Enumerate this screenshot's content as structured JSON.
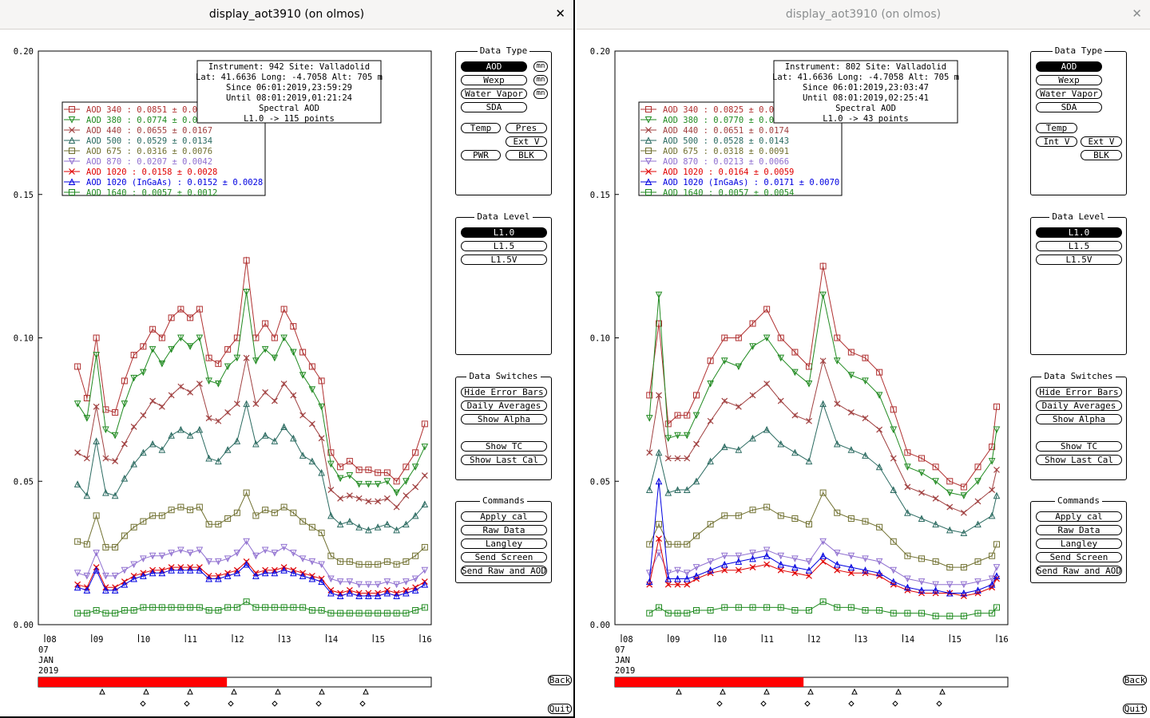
{
  "colors": {
    "accent_red": "#ff0000",
    "active_bg": "#000000"
  },
  "series_styles": [
    {
      "color": "#b03030",
      "marker": "square"
    },
    {
      "color": "#208a20",
      "marker": "tri-down"
    },
    {
      "color": "#a04040",
      "marker": "x"
    },
    {
      "color": "#2a6a60",
      "marker": "tri-up"
    },
    {
      "color": "#707030",
      "marker": "square"
    },
    {
      "color": "#9070d0",
      "marker": "tri-down"
    },
    {
      "color": "#e00000",
      "marker": "x"
    },
    {
      "color": "#0000e0",
      "marker": "tri-up"
    },
    {
      "color": "#1e8a1e",
      "marker": "square"
    }
  ],
  "windows": [
    {
      "title": "display_aot3910 (on olmos)",
      "info": {
        "line1": "Instrument: 942 Site: Valladolid",
        "line2": "Lat: 41.6636 Long: -4.7058 Alt: 705 m",
        "line3": "Since 06:01:2019,23:59:29",
        "line4": "Until 08:01:2019,01:21:24",
        "line5": "Spectral AOD",
        "line6": "L1.0 -> 115 points"
      },
      "legend": [
        "AOD 340  : 0.0851 ± 0.0",
        "AOD 380  : 0.0774 ± 0.0",
        "AOD 440  : 0.0655 ± 0.0167",
        "AOD 500  : 0.0529 ± 0.0134",
        "AOD 675  : 0.0316 ± 0.0076",
        "AOD 870  : 0.0207 ± 0.0042",
        "AOD 1020  : 0.0158 ± 0.0028",
        "AOD 1020 (InGaAs)  : 0.0152 ± 0.0028",
        "AOD 1640  : 0.0057 ± 0.0012"
      ]
    },
    {
      "title": "display_aot3910 (on olmos)",
      "info": {
        "line1": "Instrument: 802 Site: Valladolid",
        "line2": "Lat: 41.6636 Long: -4.7058 Alt: 705 m",
        "line3": "Since 06:01:2019,23:03:47",
        "line4": "Until 08:01:2019,02:25:41",
        "line5": "Spectral AOD",
        "line6": "L1.0 -> 43 points"
      },
      "legend": [
        "AOD 340  : 0.0825 ± 0.0",
        "AOD 380  : 0.0770 ± 0.0",
        "AOD 440  : 0.0651 ± 0.0174",
        "AOD 500  : 0.0528 ± 0.0143",
        "AOD 675  : 0.0318 ± 0.0091",
        "AOD 870  : 0.0213 ± 0.0066",
        "AOD 1020  : 0.0164 ± 0.0059",
        "AOD 1020 (InGaAs)  : 0.0171 ± 0.0070",
        "AOD 1640  : 0.0057 ± 0.0054"
      ]
    }
  ],
  "axis": {
    "y_ticks": [
      "0.20",
      "0.15",
      "0.10",
      "0.05",
      "0.00"
    ],
    "x_ticks": [
      "08",
      "09",
      "10",
      "11",
      "12",
      "13",
      "14",
      "15",
      "16"
    ],
    "day": "07",
    "month": "JAN",
    "year": "2019"
  },
  "panels": {
    "data_type": {
      "title": "Data Type",
      "aod": "AOD",
      "wexp": "Wexp",
      "water_vapor": "Water Vapor",
      "sda": "SDA",
      "temp": "Temp",
      "pres": "Pres",
      "ext_v": "Ext V",
      "pwr": "PWR",
      "blk": "BLK",
      "int_v": "Int V",
      "mn": "mn"
    },
    "data_level": {
      "title": "Data Level",
      "l10": "L1.0",
      "l15": "L1.5",
      "l15v": "L1.5V"
    },
    "data_switches": {
      "title": "Data Switches",
      "hide_error_bars": "Hide Error Bars",
      "daily_averages": "Daily Averages",
      "show_alpha": "Show Alpha",
      "show_tc": "Show TC",
      "show_last_cal": "Show Last Cal"
    },
    "commands": {
      "title": "Commands",
      "apply_cal": "Apply cal",
      "raw_data": "Raw Data",
      "langley": "Langley",
      "send_screen": "Send Screen",
      "send_raw_aod": "Send Raw and AOD"
    }
  },
  "corner": {
    "back": "Back",
    "quit": "Quit"
  },
  "timeline": [
    {
      "progress": 0.48
    },
    {
      "progress": 0.48
    }
  ],
  "chart_data": [
    {
      "type": "line",
      "title": "Spectral AOD",
      "ylim": [
        0,
        0.2
      ],
      "y_ticks": [
        0,
        0.05,
        0.1,
        0.15,
        0.2
      ],
      "x_ticks": [
        "08",
        "09",
        "10",
        "11",
        "12",
        "13",
        "14",
        "15",
        "16"
      ],
      "xlim": [
        8,
        16
      ],
      "grid": false,
      "legend_position": "top-left",
      "x": [
        8.7,
        8.9,
        9.1,
        9.3,
        9.5,
        9.7,
        9.9,
        10.1,
        10.3,
        10.5,
        10.7,
        10.9,
        11.1,
        11.3,
        11.5,
        11.7,
        11.9,
        12.1,
        12.3,
        12.5,
        12.7,
        12.9,
        13.1,
        13.3,
        13.5,
        13.7,
        13.9,
        14.1,
        14.3,
        14.5,
        14.7,
        14.9,
        15.1,
        15.3,
        15.5,
        15.7,
        15.9,
        16.1
      ],
      "series": [
        {
          "name": "AOD 340",
          "values": [
            0.09,
            0.079,
            0.1,
            0.075,
            0.074,
            0.085,
            0.094,
            0.097,
            0.103,
            0.1,
            0.107,
            0.11,
            0.107,
            0.11,
            0.093,
            0.091,
            0.096,
            0.1,
            0.127,
            0.1,
            0.105,
            0.1,
            0.11,
            0.104,
            0.095,
            0.09,
            0.085,
            0.06,
            0.055,
            0.057,
            0.054,
            0.054,
            0.053,
            0.053,
            0.05,
            0.055,
            0.06,
            0.07
          ]
        },
        {
          "name": "AOD 380",
          "values": [
            0.077,
            0.072,
            0.094,
            0.068,
            0.066,
            0.077,
            0.086,
            0.088,
            0.096,
            0.091,
            0.096,
            0.1,
            0.097,
            0.1,
            0.085,
            0.084,
            0.09,
            0.093,
            0.116,
            0.092,
            0.096,
            0.093,
            0.1,
            0.095,
            0.087,
            0.082,
            0.076,
            0.056,
            0.051,
            0.052,
            0.049,
            0.049,
            0.049,
            0.05,
            0.046,
            0.05,
            0.055,
            0.062
          ]
        },
        {
          "name": "AOD 440",
          "values": [
            0.06,
            0.058,
            0.076,
            0.058,
            0.057,
            0.063,
            0.069,
            0.073,
            0.078,
            0.076,
            0.08,
            0.083,
            0.081,
            0.084,
            0.072,
            0.071,
            0.074,
            0.077,
            0.093,
            0.077,
            0.081,
            0.078,
            0.084,
            0.08,
            0.073,
            0.07,
            0.065,
            0.047,
            0.044,
            0.045,
            0.044,
            0.043,
            0.043,
            0.044,
            0.041,
            0.045,
            0.048,
            0.052
          ]
        },
        {
          "name": "AOD 500",
          "values": [
            0.049,
            0.045,
            0.064,
            0.046,
            0.045,
            0.051,
            0.056,
            0.06,
            0.063,
            0.061,
            0.066,
            0.068,
            0.066,
            0.068,
            0.058,
            0.057,
            0.061,
            0.064,
            0.077,
            0.063,
            0.066,
            0.064,
            0.069,
            0.065,
            0.059,
            0.057,
            0.053,
            0.038,
            0.035,
            0.036,
            0.034,
            0.033,
            0.034,
            0.035,
            0.033,
            0.035,
            0.038,
            0.042
          ]
        },
        {
          "name": "AOD 675",
          "values": [
            0.029,
            0.028,
            0.038,
            0.027,
            0.027,
            0.031,
            0.034,
            0.036,
            0.038,
            0.038,
            0.04,
            0.041,
            0.04,
            0.041,
            0.035,
            0.035,
            0.037,
            0.039,
            0.046,
            0.038,
            0.04,
            0.039,
            0.041,
            0.039,
            0.036,
            0.034,
            0.032,
            0.024,
            0.022,
            0.022,
            0.021,
            0.021,
            0.021,
            0.022,
            0.021,
            0.022,
            0.024,
            0.027
          ]
        },
        {
          "name": "AOD 870",
          "values": [
            0.018,
            0.017,
            0.025,
            0.017,
            0.017,
            0.019,
            0.021,
            0.023,
            0.024,
            0.024,
            0.025,
            0.026,
            0.025,
            0.026,
            0.022,
            0.022,
            0.023,
            0.025,
            0.029,
            0.024,
            0.026,
            0.025,
            0.027,
            0.025,
            0.023,
            0.022,
            0.021,
            0.016,
            0.015,
            0.015,
            0.014,
            0.014,
            0.014,
            0.015,
            0.014,
            0.015,
            0.016,
            0.019
          ]
        },
        {
          "name": "AOD 1020",
          "values": [
            0.014,
            0.013,
            0.02,
            0.013,
            0.013,
            0.015,
            0.017,
            0.018,
            0.019,
            0.019,
            0.02,
            0.02,
            0.02,
            0.02,
            0.017,
            0.017,
            0.018,
            0.019,
            0.022,
            0.018,
            0.019,
            0.019,
            0.02,
            0.019,
            0.018,
            0.017,
            0.016,
            0.012,
            0.011,
            0.012,
            0.011,
            0.011,
            0.011,
            0.012,
            0.011,
            0.012,
            0.013,
            0.015
          ]
        },
        {
          "name": "AOD 1020 (InGaAs)",
          "values": [
            0.013,
            0.012,
            0.019,
            0.012,
            0.012,
            0.014,
            0.016,
            0.017,
            0.018,
            0.018,
            0.019,
            0.019,
            0.019,
            0.019,
            0.016,
            0.016,
            0.017,
            0.018,
            0.021,
            0.017,
            0.018,
            0.018,
            0.019,
            0.018,
            0.017,
            0.016,
            0.015,
            0.011,
            0.01,
            0.011,
            0.01,
            0.01,
            0.01,
            0.011,
            0.01,
            0.011,
            0.012,
            0.014
          ]
        },
        {
          "name": "AOD 1640",
          "values": [
            0.004,
            0.004,
            0.005,
            0.004,
            0.004,
            0.005,
            0.005,
            0.006,
            0.006,
            0.006,
            0.006,
            0.006,
            0.006,
            0.006,
            0.005,
            0.005,
            0.006,
            0.006,
            0.008,
            0.006,
            0.006,
            0.006,
            0.006,
            0.006,
            0.006,
            0.005,
            0.005,
            0.004,
            0.004,
            0.004,
            0.004,
            0.004,
            0.004,
            0.004,
            0.004,
            0.004,
            0.005,
            0.006
          ]
        }
      ]
    },
    {
      "type": "line",
      "title": "Spectral AOD",
      "ylim": [
        0,
        0.2
      ],
      "y_ticks": [
        0,
        0.05,
        0.1,
        0.15,
        0.2
      ],
      "x_ticks": [
        "08",
        "09",
        "10",
        "11",
        "12",
        "13",
        "14",
        "15",
        "16"
      ],
      "xlim": [
        8,
        16
      ],
      "grid": false,
      "legend_position": "top-left",
      "x": [
        8.6,
        8.8,
        9.0,
        9.2,
        9.4,
        9.6,
        9.9,
        10.2,
        10.5,
        10.8,
        11.1,
        11.4,
        11.7,
        12.0,
        12.3,
        12.6,
        12.9,
        13.2,
        13.5,
        13.8,
        14.1,
        14.4,
        14.7,
        15.0,
        15.3,
        15.6,
        15.9,
        16.0
      ],
      "series": [
        {
          "name": "AOD 340",
          "values": [
            0.08,
            0.105,
            0.07,
            0.073,
            0.073,
            0.08,
            0.092,
            0.1,
            0.1,
            0.105,
            0.11,
            0.1,
            0.095,
            0.09,
            0.125,
            0.1,
            0.095,
            0.093,
            0.088,
            0.075,
            0.06,
            0.058,
            0.055,
            0.05,
            0.048,
            0.055,
            0.062,
            0.076
          ]
        },
        {
          "name": "AOD 380",
          "values": [
            0.072,
            0.115,
            0.065,
            0.066,
            0.066,
            0.073,
            0.084,
            0.092,
            0.09,
            0.097,
            0.1,
            0.093,
            0.088,
            0.084,
            0.115,
            0.092,
            0.087,
            0.085,
            0.08,
            0.068,
            0.055,
            0.053,
            0.05,
            0.046,
            0.045,
            0.05,
            0.057,
            0.068
          ]
        },
        {
          "name": "AOD 440",
          "values": [
            0.06,
            0.08,
            0.058,
            0.058,
            0.058,
            0.063,
            0.071,
            0.078,
            0.076,
            0.08,
            0.084,
            0.078,
            0.073,
            0.071,
            0.092,
            0.077,
            0.074,
            0.072,
            0.068,
            0.058,
            0.048,
            0.046,
            0.044,
            0.041,
            0.039,
            0.043,
            0.047,
            0.054
          ]
        },
        {
          "name": "AOD 500",
          "values": [
            0.047,
            0.06,
            0.046,
            0.047,
            0.047,
            0.05,
            0.057,
            0.062,
            0.061,
            0.065,
            0.068,
            0.063,
            0.06,
            0.057,
            0.077,
            0.063,
            0.061,
            0.059,
            0.055,
            0.047,
            0.039,
            0.037,
            0.035,
            0.033,
            0.032,
            0.035,
            0.038,
            0.045
          ]
        },
        {
          "name": "AOD 675",
          "values": [
            0.028,
            0.035,
            0.028,
            0.028,
            0.028,
            0.031,
            0.035,
            0.038,
            0.038,
            0.04,
            0.041,
            0.038,
            0.037,
            0.035,
            0.046,
            0.039,
            0.037,
            0.036,
            0.034,
            0.029,
            0.024,
            0.023,
            0.022,
            0.02,
            0.02,
            0.022,
            0.024,
            0.028
          ]
        },
        {
          "name": "AOD 870",
          "values": [
            0.018,
            0.025,
            0.018,
            0.019,
            0.018,
            0.02,
            0.022,
            0.024,
            0.024,
            0.025,
            0.026,
            0.024,
            0.023,
            0.022,
            0.029,
            0.025,
            0.024,
            0.023,
            0.022,
            0.019,
            0.016,
            0.015,
            0.014,
            0.014,
            0.014,
            0.015,
            0.016,
            0.02
          ]
        },
        {
          "name": "AOD 1020",
          "values": [
            0.014,
            0.03,
            0.014,
            0.014,
            0.014,
            0.016,
            0.018,
            0.019,
            0.019,
            0.02,
            0.021,
            0.019,
            0.018,
            0.017,
            0.022,
            0.019,
            0.018,
            0.018,
            0.017,
            0.014,
            0.012,
            0.011,
            0.011,
            0.011,
            0.01,
            0.011,
            0.013,
            0.016
          ]
        },
        {
          "name": "AOD 1020 (InGaAs)",
          "values": [
            0.015,
            0.05,
            0.016,
            0.016,
            0.016,
            0.017,
            0.019,
            0.021,
            0.022,
            0.023,
            0.024,
            0.021,
            0.02,
            0.019,
            0.024,
            0.021,
            0.02,
            0.019,
            0.018,
            0.015,
            0.013,
            0.012,
            0.012,
            0.011,
            0.011,
            0.012,
            0.014,
            0.017
          ]
        },
        {
          "name": "AOD 1640",
          "values": [
            0.004,
            0.006,
            0.004,
            0.004,
            0.004,
            0.005,
            0.005,
            0.006,
            0.006,
            0.006,
            0.006,
            0.006,
            0.005,
            0.005,
            0.008,
            0.006,
            0.006,
            0.005,
            0.005,
            0.004,
            0.004,
            0.004,
            0.003,
            0.003,
            0.003,
            0.004,
            0.004,
            0.006
          ]
        }
      ]
    }
  ]
}
